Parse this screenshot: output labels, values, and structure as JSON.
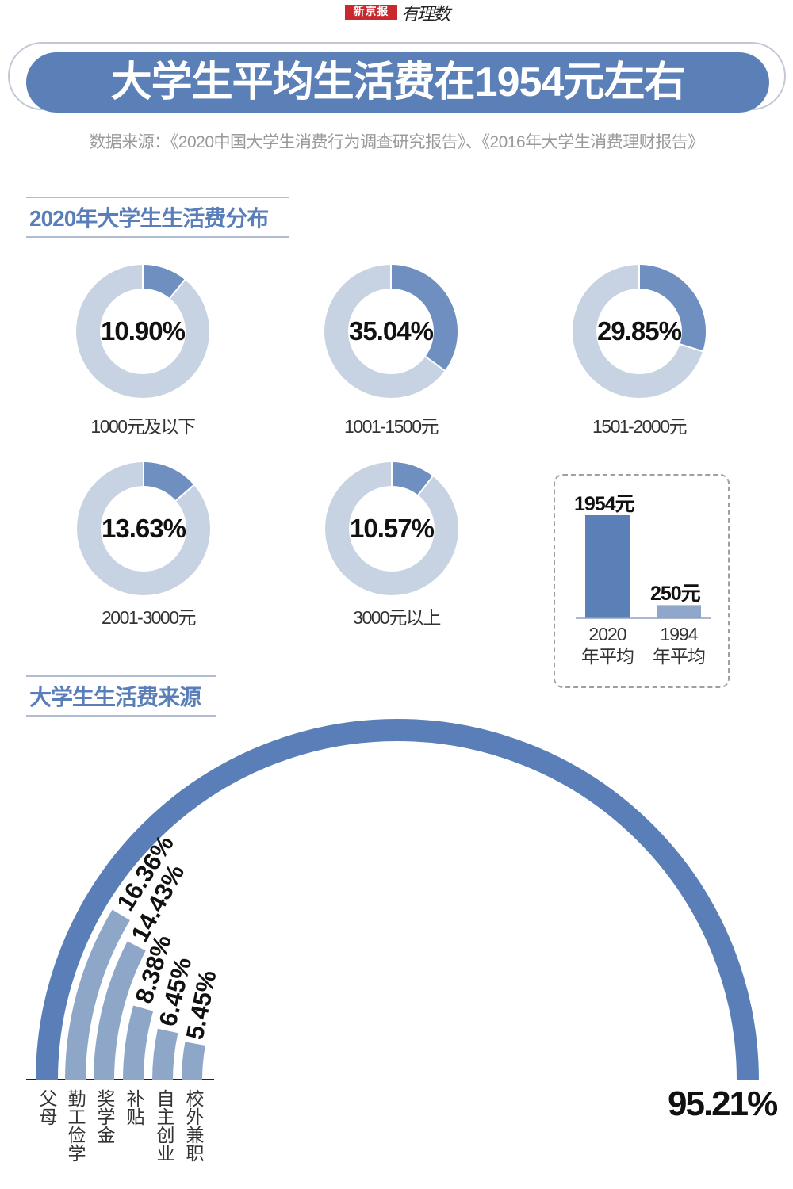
{
  "logo": {
    "brand": "新京报",
    "column": "有理数",
    "brand_color": "#c8282e"
  },
  "title": "大学生平均生活费在1954元左右",
  "source": "数据来源：《2020中国大学生消费行为调查研究报告》、《2016年大学生消费理财报告》",
  "colors": {
    "accent": "#5b80b8",
    "donut_highlight": "#6e8fbf",
    "donut_rest": "#c7d3e3",
    "bar_light": "#8fa7cb"
  },
  "chart_data": [
    {
      "type": "pie",
      "title": "2020年大学生生活费分布",
      "variant": "donut-small-multiples",
      "slices": [
        {
          "label": "1000元及以下",
          "value": 10.9,
          "display": "10.90%"
        },
        {
          "label": "1001-1500元",
          "value": 35.04,
          "display": "35.04%"
        },
        {
          "label": "1501-2000元",
          "value": 29.85,
          "display": "29.85%"
        },
        {
          "label": "2001-3000元",
          "value": 13.63,
          "display": "13.63%"
        },
        {
          "label": "3000元以上",
          "value": 10.57,
          "display": "10.57%"
        }
      ]
    },
    {
      "type": "bar",
      "categories": [
        "2020\n年平均",
        "1994\n年平均"
      ],
      "category_lines": [
        [
          "2020",
          "年平均"
        ],
        [
          "1994",
          "年平均"
        ]
      ],
      "values": [
        1954,
        250
      ],
      "data_labels": [
        "1954元",
        "250元"
      ],
      "unit": "元"
    },
    {
      "type": "bar",
      "variant": "radial",
      "title": "大学生生活费来源",
      "categories": [
        "父母",
        "勤工俭学",
        "奖学金",
        "补贴",
        "自主创业",
        "校外兼职"
      ],
      "values": [
        95.21,
        16.36,
        14.43,
        8.38,
        6.45,
        5.45
      ],
      "data_labels": [
        "95.21%",
        "16.36%",
        "14.43%",
        "8.38%",
        "6.45%",
        "5.45%"
      ]
    }
  ]
}
